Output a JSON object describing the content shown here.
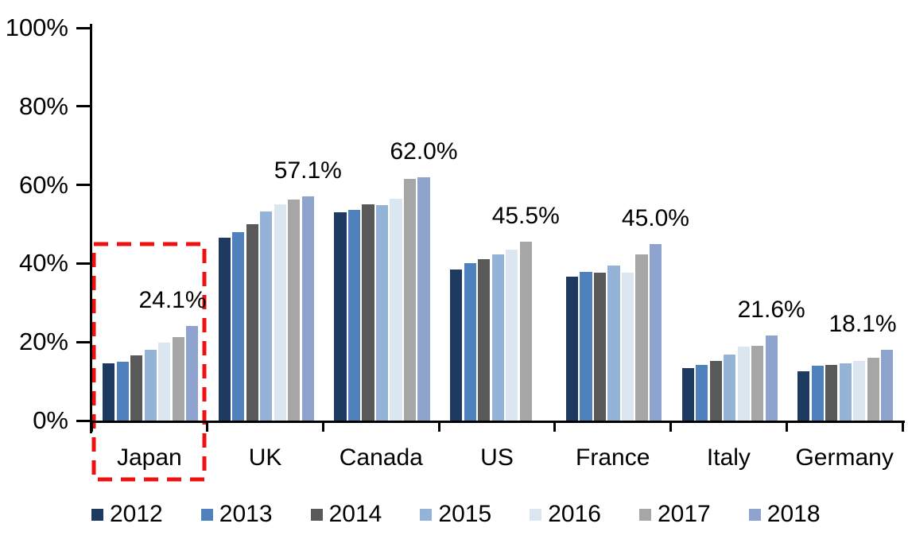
{
  "chart_data": {
    "type": "bar",
    "title": "",
    "xlabel": "",
    "ylabel": "",
    "categories": [
      "Japan",
      "UK",
      "Canada",
      "US",
      "France",
      "Italy",
      "Germany"
    ],
    "series": [
      {
        "name": "2012",
        "color": "#1F3A60",
        "values": [
          14.6,
          46.6,
          53.1,
          38.4,
          36.6,
          13.3,
          12.5
        ]
      },
      {
        "name": "2013",
        "color": "#4F81BD",
        "values": [
          14.9,
          47.9,
          53.6,
          40.1,
          37.8,
          14.2,
          14.0
        ]
      },
      {
        "name": "2014",
        "color": "#595959",
        "values": [
          16.5,
          50.1,
          55.1,
          41.1,
          37.7,
          15.2,
          14.2
        ]
      },
      {
        "name": "2015",
        "color": "#95B3D7",
        "values": [
          18.0,
          53.3,
          54.9,
          42.3,
          39.5,
          16.8,
          14.6
        ]
      },
      {
        "name": "2016",
        "color": "#DCE6F1",
        "values": [
          19.9,
          55.1,
          56.5,
          43.5,
          37.6,
          18.9,
          15.2
        ]
      },
      {
        "name": "2017",
        "color": "#A6A6A6",
        "values": [
          21.2,
          56.3,
          61.6,
          45.5,
          42.4,
          19.1,
          15.9
        ]
      },
      {
        "name": "2018",
        "color": "#8EA3CD",
        "values": [
          24.1,
          57.1,
          62.0,
          null,
          45.0,
          21.6,
          18.1
        ]
      }
    ],
    "value_labels": [
      {
        "category": "Japan",
        "text": "24.1%",
        "value": 24.1
      },
      {
        "category": "UK",
        "text": "57.1%",
        "value": 57.1
      },
      {
        "category": "Canada",
        "text": "62.0%",
        "value": 62.0
      },
      {
        "category": "US",
        "text": "45.5%",
        "value": 45.5
      },
      {
        "category": "France",
        "text": "45.0%",
        "value": 45.0
      },
      {
        "category": "Italy",
        "text": "21.6%",
        "value": 21.6
      },
      {
        "category": "Germany",
        "text": "18.1%",
        "value": 18.1
      }
    ],
    "y_axis": {
      "ticks": [
        "0%",
        "20%",
        "40%",
        "60%",
        "80%",
        "100%"
      ],
      "min": 0,
      "max": 100,
      "grid": false
    },
    "legend": {
      "position": "bottom",
      "entries": [
        "2012",
        "2013",
        "2014",
        "2015",
        "2016",
        "2017",
        "2018"
      ]
    },
    "highlight": {
      "category": "Japan",
      "shape": "dashed-rectangle",
      "color": "#EE1111"
    },
    "colors": {
      "axis": "#000000",
      "text": "#000000",
      "background": "#FFFFFF"
    }
  }
}
